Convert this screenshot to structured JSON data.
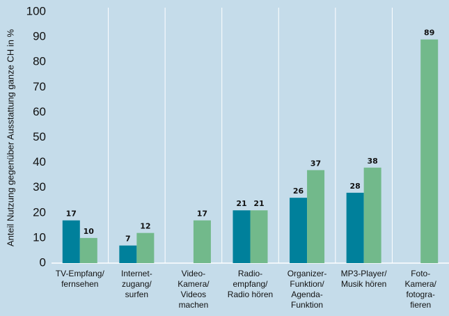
{
  "chart_data": {
    "type": "bar",
    "y_label": "Anteil Nutzung gegenüber Ausstattung ganze CH in %",
    "categories": [
      [
        "TV-Empfang/",
        "fernsehen"
      ],
      [
        "Internet-",
        "zugang/",
        "surfen"
      ],
      [
        "Video-",
        "Kamera/",
        "Videos",
        "machen"
      ],
      [
        "Radio-",
        "empfang/",
        "Radio hören"
      ],
      [
        "Organizer-",
        "Funktion/",
        "Agenda-",
        "Funktion"
      ],
      [
        "MP3-Player/",
        "Musik hören"
      ],
      [
        "Foto-",
        "Kamera/",
        "fotogra-",
        "fieren"
      ]
    ],
    "series": [
      {
        "color": "#00809b",
        "values": [
          17,
          7,
          null,
          21,
          26,
          28,
          null
        ]
      },
      {
        "color": "#72b98b",
        "values": [
          10,
          12,
          17,
          21,
          37,
          38,
          89
        ]
      }
    ],
    "ylim": [
      0,
      100
    ],
    "yticks": [
      0,
      10,
      20,
      30,
      40,
      50,
      60,
      70,
      80,
      90,
      100
    ],
    "grid": "vertical-separators"
  }
}
